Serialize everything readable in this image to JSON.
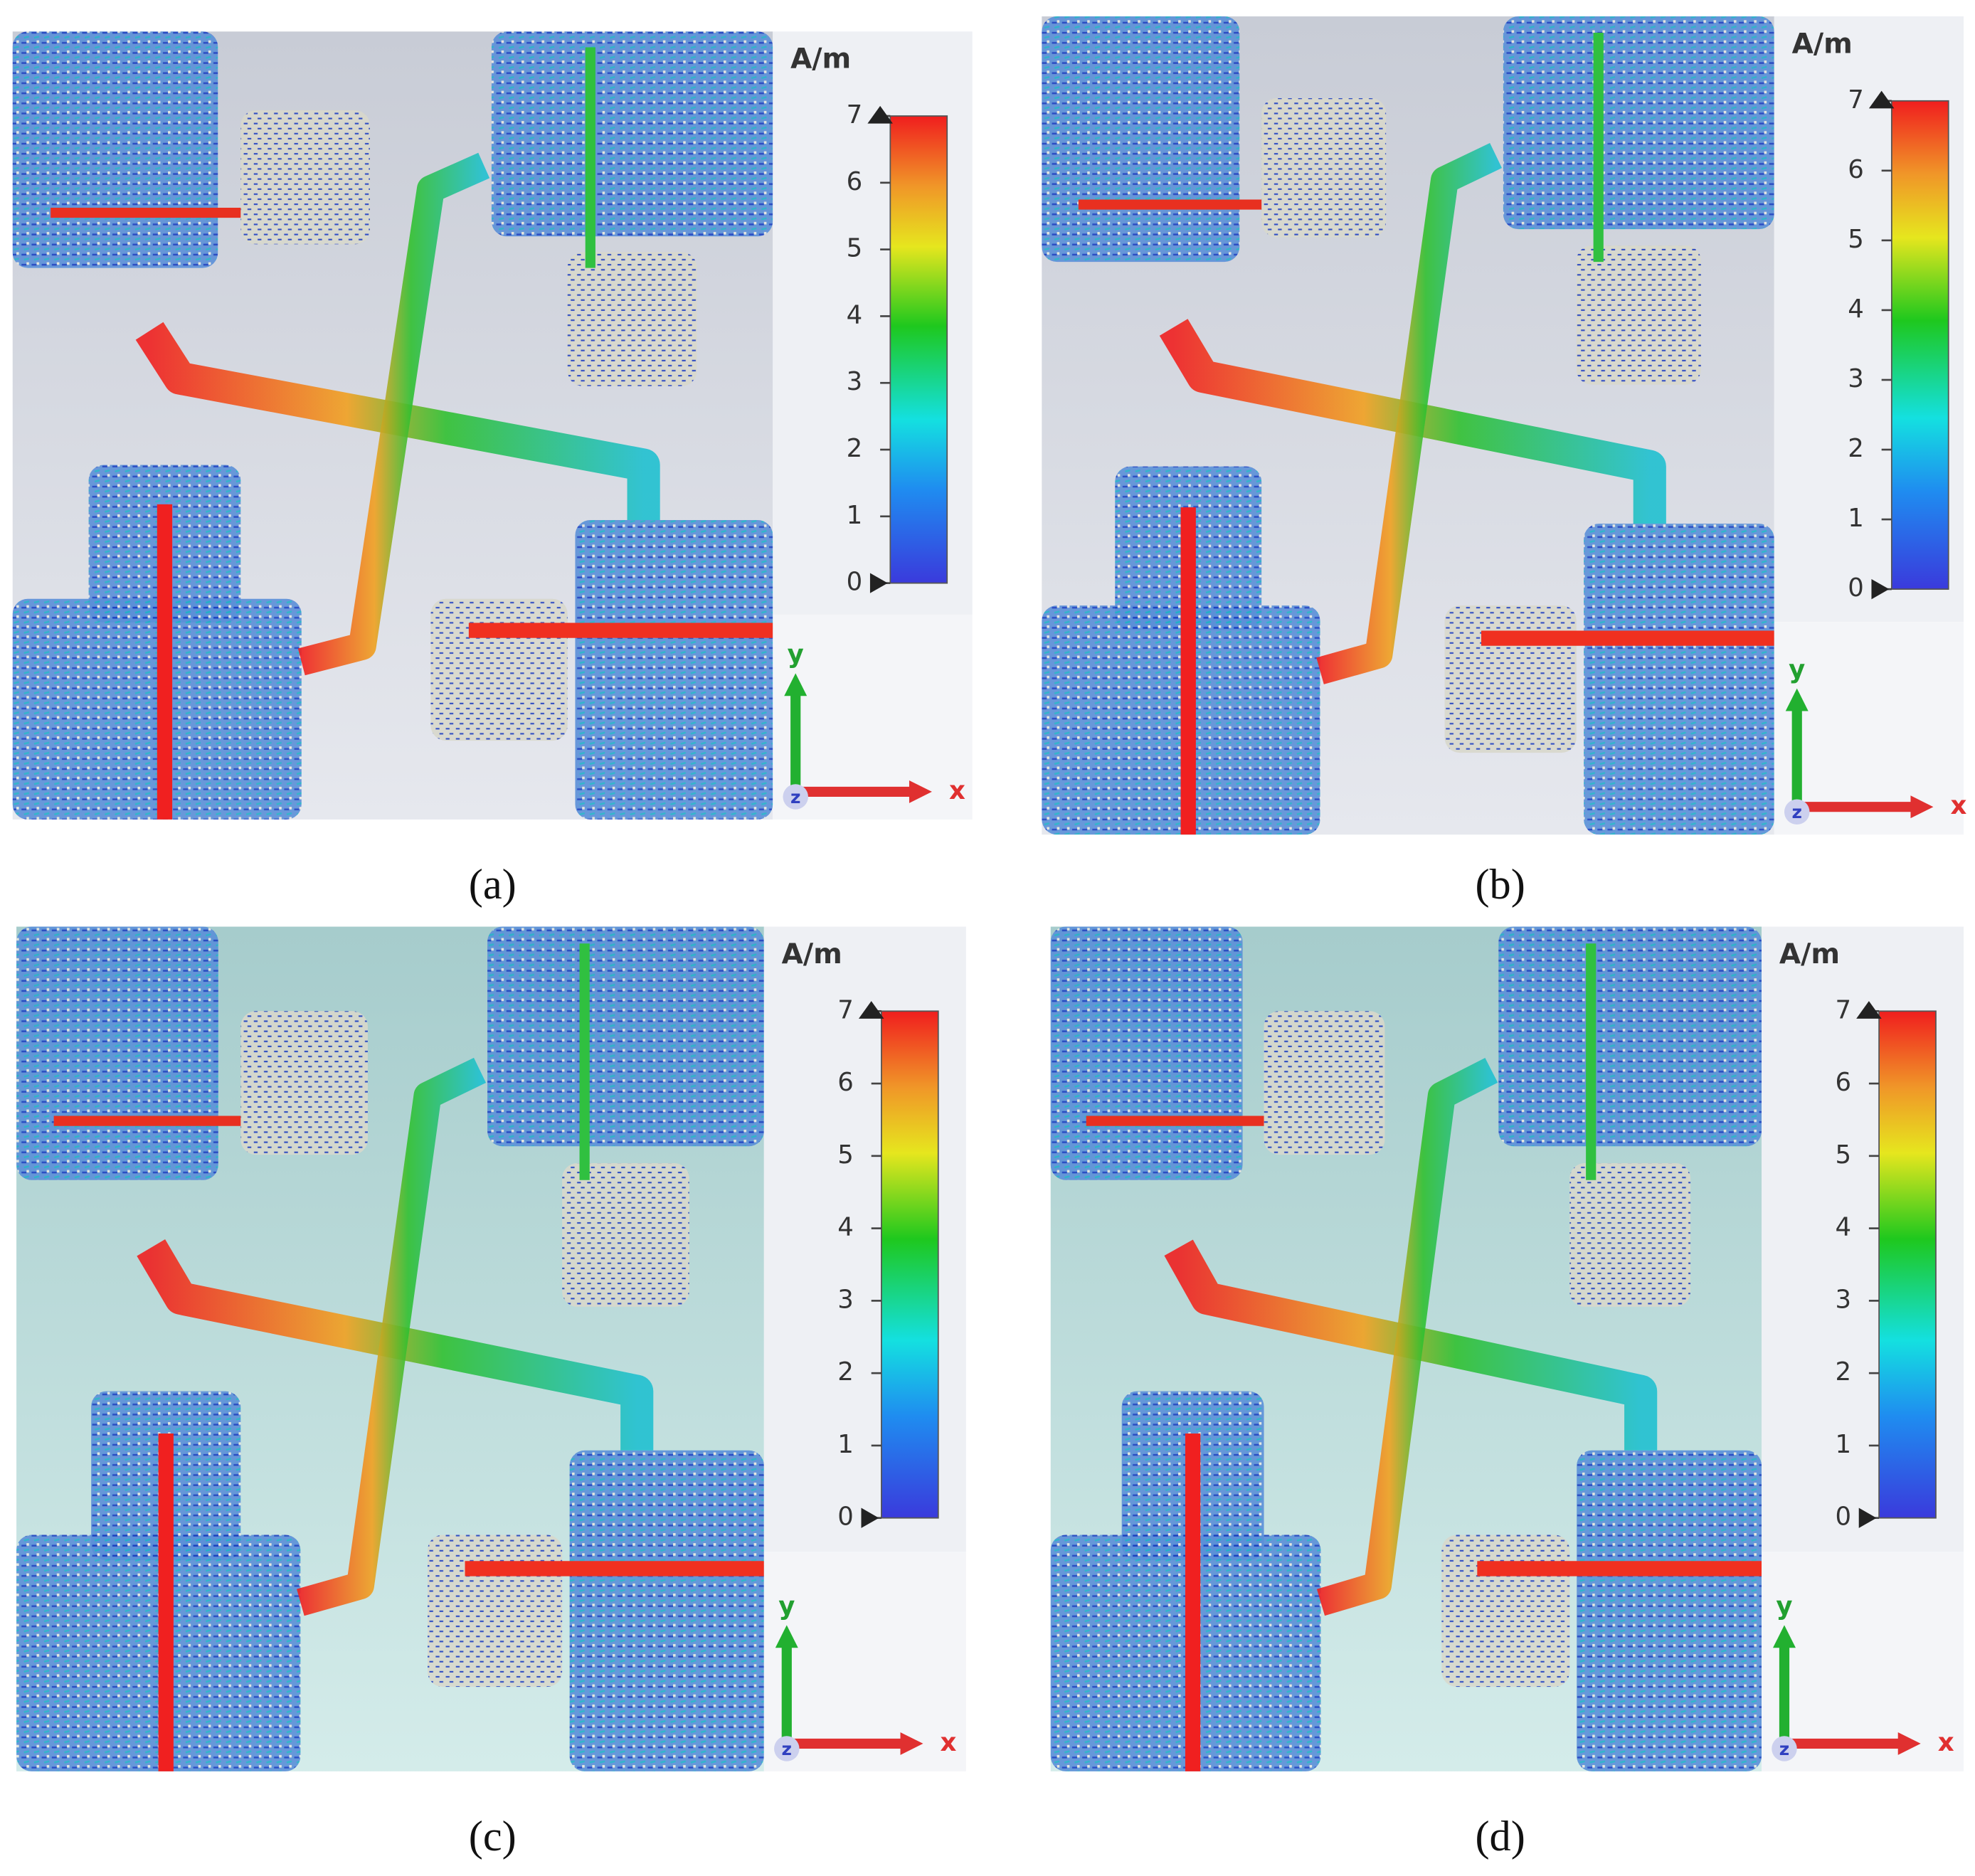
{
  "panels": [
    {
      "label": "(a)",
      "unit": "A/m",
      "ticks": [
        0,
        1,
        2,
        3,
        4,
        5,
        6,
        7
      ],
      "axis_y": "y",
      "axis_x": "x",
      "axis_z": "z"
    },
    {
      "label": "(b)",
      "unit": "A/m",
      "ticks": [
        0,
        1,
        2,
        3,
        4,
        5,
        6,
        7
      ],
      "axis_y": "y",
      "axis_x": "x",
      "axis_z": "z"
    },
    {
      "label": "(c)",
      "unit": "A/m",
      "ticks": [
        0,
        1,
        2,
        3,
        4,
        5,
        6,
        7
      ],
      "axis_y": "y",
      "axis_x": "x",
      "axis_z": "z"
    },
    {
      "label": "(d)",
      "unit": "A/m",
      "ticks": [
        0,
        1,
        2,
        3,
        4,
        5,
        6,
        7
      ],
      "axis_y": "y",
      "axis_x": "x",
      "axis_z": "z"
    }
  ]
}
